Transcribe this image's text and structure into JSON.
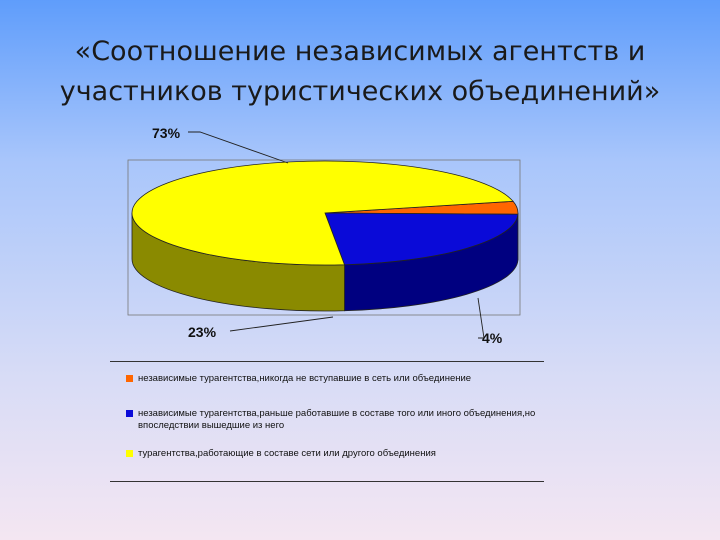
{
  "slide": {
    "title_lines": [
      "«Соотношение независимых агентств и",
      "участников туристических объединений»"
    ]
  },
  "chart_data": {
    "type": "pie",
    "three_d": true,
    "categories": [
      "независимые турагентства,никогда не вступавшие в сеть или объединение",
      "независимые турагентства,раньше работавшие в составе того или иного объединения,но впоследствии вышедшие из него",
      "турагентства,работающие в составе сети или другого объединения"
    ],
    "values": [
      4,
      23,
      73
    ],
    "labels": [
      "4%",
      "23%",
      "73%"
    ],
    "colors": [
      "#ff6600",
      "#0a0ad8",
      "#ffff00"
    ],
    "side_colors": [
      "#8a3400",
      "#000080",
      "#8a8a00"
    ],
    "legend_placement": "bottom"
  }
}
